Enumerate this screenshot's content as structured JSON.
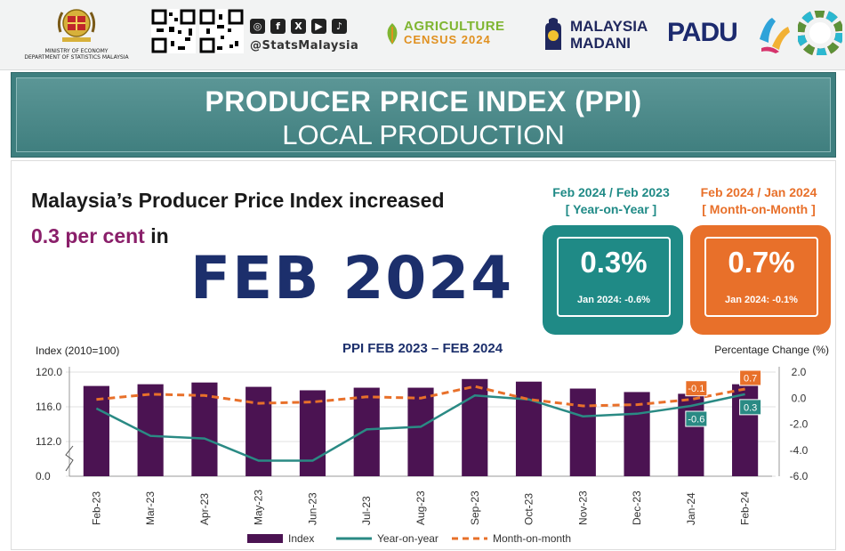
{
  "header": {
    "ministry_line1": "MINISTRY OF ECONOMY",
    "ministry_line2": "DEPARTMENT OF STATISTICS MALAYSIA",
    "handle": "@StatsMalaysia",
    "social_icons": [
      "instagram-icon",
      "facebook-icon",
      "x-icon",
      "youtube-icon",
      "tiktok-icon"
    ],
    "agri_title": "AGRICULTURE",
    "agri_sub": "CENSUS 2024",
    "madani_line1": "MALAYSIA",
    "madani_line2": "MADANI",
    "padu": "PADU"
  },
  "banner": {
    "title": "PRODUCER PRICE INDEX (PPI)",
    "subtitle": "LOCAL PRODUCTION"
  },
  "summary": {
    "line1": "Malaysia’s Producer Price Index increased",
    "change": "0.3 per cent",
    "in_word": " in",
    "month": "FEB 2024"
  },
  "kpis": [
    {
      "period": "Feb 2024 / Feb 2023",
      "basis": "[ Year-on-Year ]",
      "value": "0.3%",
      "previous": "Jan 2024: -0.6%",
      "color": "#1f8a86"
    },
    {
      "period": "Feb 2024 / Jan 2024",
      "basis": "[ Month-on-Month ]",
      "value": "0.7%",
      "previous": "Jan 2024: -0.1%",
      "color": "#e8702a"
    }
  ],
  "chart_data": {
    "type": "bar",
    "title": "PPI FEB 2023 – FEB 2024",
    "ylabel_left": "Index (2010=100)",
    "ylabel_right": "Percentage Change (%)",
    "categories": [
      "Feb-23",
      "Mar-23",
      "Apr-23",
      "May-23",
      "Jun-23",
      "Jul-23",
      "Aug-23",
      "Sep-23",
      "Oct-23",
      "Nov-23",
      "Dec-23",
      "Jan-24",
      "Feb-24"
    ],
    "left_ticks": [
      "120.0",
      "116.0",
      "112.0",
      "0.0"
    ],
    "right_ticks": [
      "2.0",
      "0.0",
      "-2.0",
      "-4.0",
      "-6.0"
    ],
    "ylim_left": [
      108,
      120
    ],
    "ylim_right": [
      -6,
      2
    ],
    "axis_break": true,
    "series": [
      {
        "name": "Index",
        "kind": "bar",
        "axis": "left",
        "color": "#4b1352",
        "values": [
          118.4,
          118.6,
          118.8,
          118.3,
          117.9,
          118.2,
          118.2,
          119.2,
          118.9,
          118.1,
          117.7,
          117.5,
          118.6
        ]
      },
      {
        "name": "Year-on-year",
        "kind": "line",
        "axis": "right",
        "color": "#2a8a84",
        "values": [
          -0.8,
          -2.9,
          -3.1,
          -4.8,
          -4.8,
          -2.4,
          -2.2,
          0.2,
          -0.1,
          -1.4,
          -1.2,
          -0.6,
          0.3
        ]
      },
      {
        "name": "Month-on-month",
        "kind": "line",
        "axis": "right",
        "color": "#e8702a",
        "dashed": true,
        "values": [
          -0.1,
          0.3,
          0.2,
          -0.4,
          -0.3,
          0.1,
          0.0,
          0.9,
          -0.1,
          -0.6,
          -0.5,
          -0.1,
          0.7
        ]
      }
    ],
    "annotations": [
      {
        "category": "Jan-24",
        "series": "Month-on-month",
        "label": "-0.1"
      },
      {
        "category": "Feb-24",
        "series": "Month-on-month",
        "label": "0.7"
      },
      {
        "category": "Jan-24",
        "series": "Year-on-year",
        "label": "-0.6"
      },
      {
        "category": "Feb-24",
        "series": "Year-on-year",
        "label": "0.3"
      }
    ],
    "legend": [
      "Index",
      "Year-on-year",
      "Month-on-month"
    ],
    "legend_position": "bottom"
  }
}
